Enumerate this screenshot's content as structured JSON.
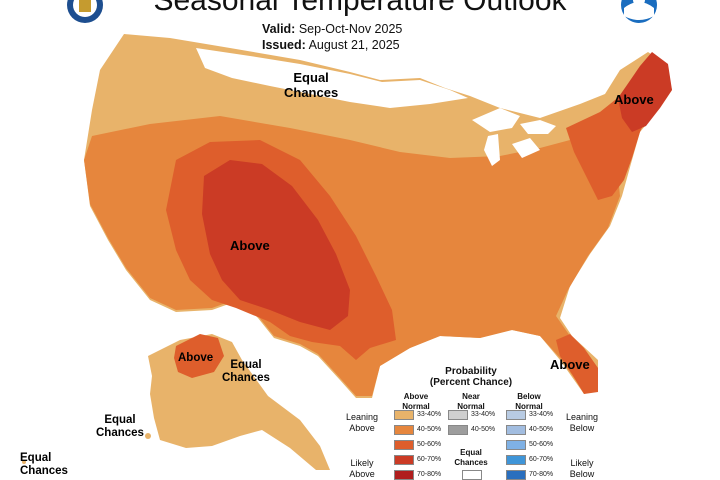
{
  "header": {
    "title": "Seasonal Temperature Outlook",
    "valid_label": "Valid:",
    "valid_value": "Sep-Oct-Nov 2025",
    "issued_label": "Issued:",
    "issued_value": "August 21, 2025"
  },
  "logos": {
    "left": "noaa-nws-emblem-icon",
    "right": "noaa-logo-icon"
  },
  "map_labels": {
    "north": "Equal\nChances",
    "southwest": "Above",
    "northeast": "Above",
    "florida": "Above",
    "alaska_north": "Above",
    "alaska_east": "Equal\nChances",
    "alaska_south": "Equal\nChances",
    "hawaii": "Equal\nChances"
  },
  "legend": {
    "title": "Probability\n(Percent Chance)",
    "col_above": "Above\nNormal",
    "col_near": "Near\nNormal",
    "col_below": "Below\nNormal",
    "leaning_above": "Leaning\nAbove",
    "likely_above": "Likely\nAbove",
    "leaning_below": "Leaning\nBelow",
    "likely_below": "Likely\nBelow",
    "equal_chances": "Equal\nChances",
    "above": [
      {
        "label": "33-40%",
        "color": "#e8b36a"
      },
      {
        "label": "40-50%",
        "color": "#e6863d"
      },
      {
        "label": "50-60%",
        "color": "#de5e2c"
      },
      {
        "label": "60-70%",
        "color": "#cb3b25"
      },
      {
        "label": "70-80%",
        "color": "#b01e1e"
      }
    ],
    "near": [
      {
        "label": "33-40%",
        "color": "#cfcfcf"
      },
      {
        "label": "40-50%",
        "color": "#9d9d9d"
      }
    ],
    "below": [
      {
        "label": "33-40%",
        "color": "#b8cbe3"
      },
      {
        "label": "40-50%",
        "color": "#a2bde0"
      },
      {
        "label": "50-60%",
        "color": "#7fb1e5"
      },
      {
        "label": "60-70%",
        "color": "#3f95d8"
      },
      {
        "label": "70-80%",
        "color": "#2a6fbe"
      }
    ]
  }
}
